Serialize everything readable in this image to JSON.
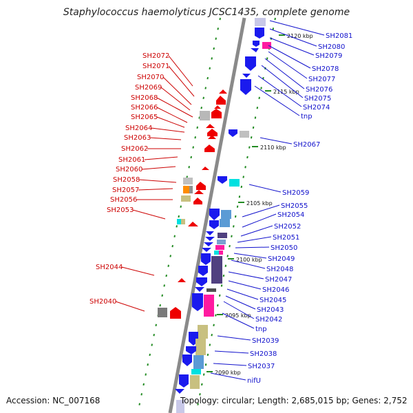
{
  "title": "Staphylococcus haemolyticus JCSC1435, complete genome",
  "accession": "Accession: NC_007168",
  "topology": "Topology: circular; Length: 2,685,015 bp; Genes: 2,752",
  "colors": {
    "axis": "#888888",
    "forward_label": "#cc0000",
    "reverse_label": "#1010cc",
    "forward_gene": "#ee0000",
    "reverse_gene": "#1a1aee",
    "tick": "#228b22"
  },
  "kbp_marks": [
    "2120 kbp",
    "2115 kbp",
    "2110 kbp",
    "2105 kbp",
    "2100 kbp",
    "2095 kbp",
    "2090 kbp"
  ],
  "left_labels": [
    "SH2072",
    "SH2071",
    "SH2070",
    "SH2069",
    "SH2068",
    "SH2066",
    "SH2065",
    "SH2064",
    "SH2063",
    "SH2062",
    "SH2061",
    "SH2060",
    "SH2058",
    "SH2057",
    "SH2056",
    "SH2053",
    "SH2044",
    "SH2040"
  ],
  "right_labels": [
    "SH2081",
    "SH2080",
    "SH2079",
    "SH2078",
    "SH2077",
    "SH2076",
    "SH2075",
    "SH2074",
    "tnp",
    "SH2067",
    "SH2059",
    "SH2055",
    "SH2054",
    "SH2052",
    "SH2051",
    "SH2050",
    "SH2049",
    "SH2048",
    "SH2047",
    "SH2046",
    "SH2045",
    "SH2043",
    "SH2042",
    "tnp",
    "SH2039",
    "SH2038",
    "SH2037",
    "nifU"
  ]
}
